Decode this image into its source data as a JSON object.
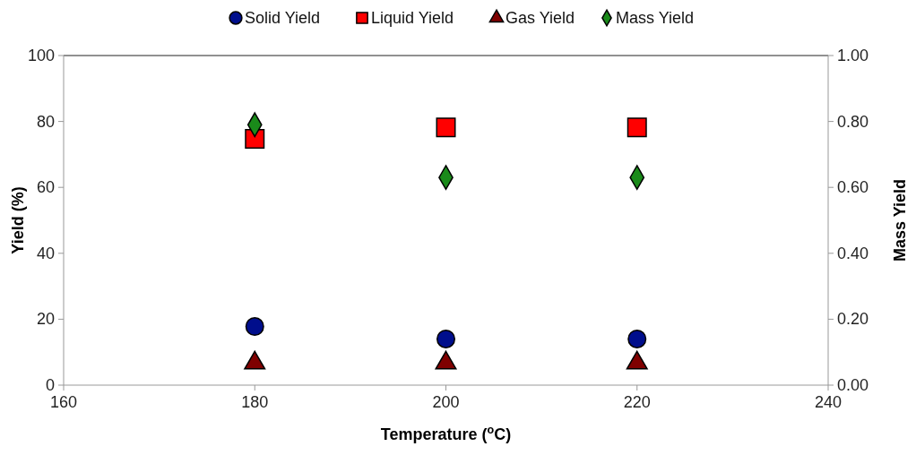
{
  "chart_data": {
    "type": "scatter",
    "xlabel": "Temperature ($^{o}$C)",
    "ylabel": "Yield (%)",
    "y2label": "Mass Yield",
    "x": [
      180,
      200,
      220
    ],
    "xlim": [
      160,
      240
    ],
    "xticks": [
      160,
      180,
      200,
      220,
      240
    ],
    "ylim": [
      0,
      100
    ],
    "yticks": [
      0,
      20,
      40,
      60,
      80,
      100
    ],
    "y2lim": [
      0,
      1
    ],
    "y2ticks": [
      {
        "value": 0,
        "label": "0.00"
      },
      {
        "value": 0.2,
        "label": "0.20"
      },
      {
        "value": 0.4,
        "label": "0.40"
      },
      {
        "value": 0.6,
        "label": "0.60"
      },
      {
        "value": 0.8,
        "label": "0.80"
      },
      {
        "value": 1,
        "label": "1.00"
      }
    ],
    "legend": "top",
    "grid": false,
    "series": [
      {
        "name": "Solid Yield",
        "color": "#000e8c",
        "marker": "circle",
        "values": [
          17.8,
          14,
          14
        ]
      },
      {
        "name": "Liquid Yield",
        "color": "#ff0000",
        "marker": "square",
        "values": [
          74.7,
          78.2,
          78.2
        ]
      },
      {
        "name": "Gas Yield",
        "color": "#7f0000",
        "marker": "triangle",
        "values": [
          6.7,
          6.7,
          6.7
        ]
      },
      {
        "name": "Mass Yield",
        "color": "#1a8a1a",
        "marker": "diamond",
        "axis": "y2",
        "values": [
          0.79,
          0.63,
          0.63
        ]
      }
    ]
  }
}
